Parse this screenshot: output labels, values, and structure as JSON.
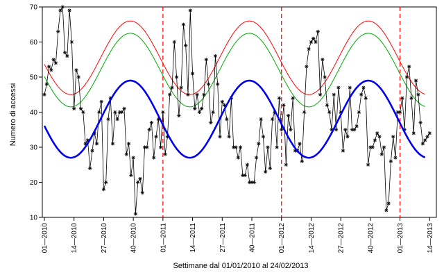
{
  "chart_data": {
    "type": "line",
    "title": "",
    "xlabel": "Settimane dal 01/01/2010 al 24/02/2013",
    "ylabel": "Numero di accessi",
    "xlim": [
      0,
      168
    ],
    "ylim": [
      10,
      70
    ],
    "x_ticks": [
      {
        "pos": 0,
        "label": "01—2010"
      },
      {
        "pos": 13,
        "label": "14—2010"
      },
      {
        "pos": 26,
        "label": "27—2010"
      },
      {
        "pos": 39,
        "label": "40—2010"
      },
      {
        "pos": 52,
        "label": "01—2011"
      },
      {
        "pos": 65,
        "label": "14—2011"
      },
      {
        "pos": 78,
        "label": "27—2011"
      },
      {
        "pos": 91,
        "label": "40—2011"
      },
      {
        "pos": 104,
        "label": "01—2012"
      },
      {
        "pos": 117,
        "label": "14—2012"
      },
      {
        "pos": 130,
        "label": "27—2012"
      },
      {
        "pos": 143,
        "label": "40—2012"
      },
      {
        "pos": 156,
        "label": "01—2013"
      },
      {
        "pos": 169,
        "label": "14—2013"
      }
    ],
    "y_ticks": [
      10,
      20,
      30,
      40,
      50,
      60,
      70
    ],
    "grid": false,
    "year_markers": [
      52,
      104,
      156
    ],
    "observed": {
      "color": "#000000",
      "marker": "asterisk",
      "y": [
        45,
        48,
        53,
        52,
        55,
        54,
        63,
        69,
        70,
        57,
        56,
        69,
        60,
        41,
        52,
        50,
        41,
        40,
        31,
        32,
        24,
        29,
        34,
        31,
        40,
        43,
        18,
        20,
        38,
        44,
        31,
        40,
        38,
        40,
        40,
        41,
        28,
        31,
        22,
        27,
        11,
        20,
        21,
        17,
        30,
        30,
        35,
        37,
        27,
        33,
        38,
        30,
        40,
        28,
        33,
        45,
        47,
        60,
        50,
        39,
        47,
        65,
        59,
        45,
        69,
        51,
        41,
        45,
        40,
        41,
        45,
        55,
        48,
        37,
        40,
        56,
        48,
        33,
        43,
        42,
        38,
        33,
        44,
        30,
        30,
        27,
        30,
        22,
        22,
        25,
        20,
        20,
        20,
        27,
        31,
        38,
        33,
        23,
        30,
        24,
        38,
        40,
        30,
        44,
        35,
        42,
        25,
        39,
        35,
        44,
        29,
        29,
        31,
        26,
        40,
        53,
        58,
        60,
        61,
        60,
        63,
        45,
        55,
        50,
        42,
        40,
        35,
        45,
        35,
        47,
        40,
        29,
        35,
        33,
        47,
        35,
        35,
        36,
        40,
        45,
        47,
        44,
        25,
        30,
        30,
        32,
        34,
        33,
        28,
        30,
        12,
        14,
        26,
        33,
        27,
        40,
        40,
        44,
        35,
        50,
        53,
        44,
        34,
        49,
        45,
        37,
        31,
        32,
        33,
        34
      ]
    },
    "series": [
      {
        "name": "",
        "color": "#0000ee",
        "role": "fitted",
        "mean": 38.0,
        "amp": 11.0,
        "phase_deg": 80,
        "period": 52.2
      },
      {
        "name": "",
        "color": "#00aa00",
        "role": "lower",
        "mean": 52.0,
        "amp": 10.5,
        "phase_deg": 80,
        "period": 52.2
      },
      {
        "name": "",
        "color": "#ff0000",
        "role": "upper",
        "mean": 55.5,
        "amp": 10.5,
        "phase_deg": 80,
        "period": 52.2
      }
    ],
    "colors": {
      "marker_line": "#ff0000",
      "axis": "#000000"
    }
  }
}
